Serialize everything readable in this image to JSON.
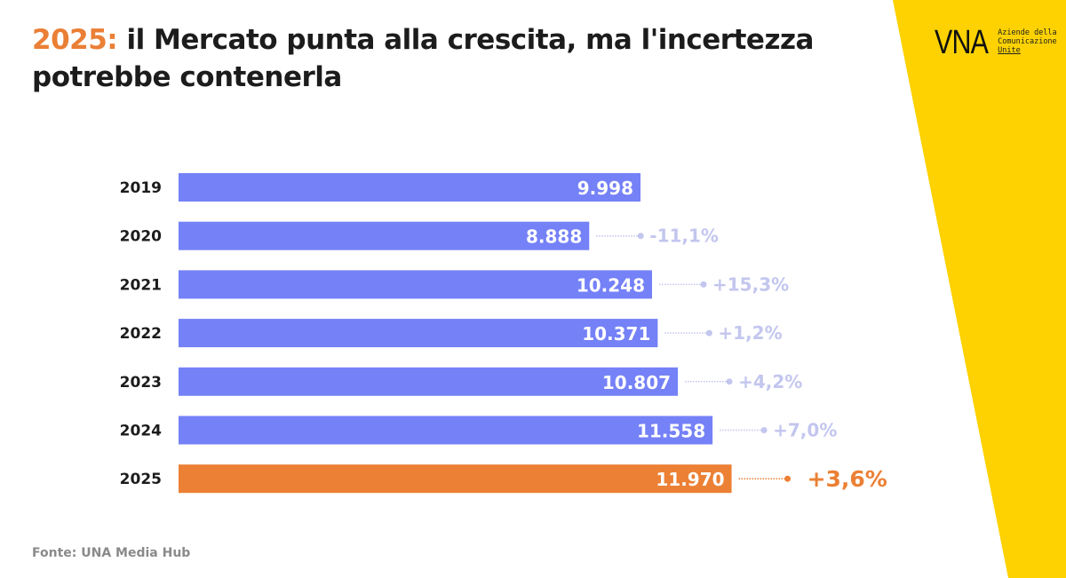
{
  "title": {
    "year": "2025:",
    "text": " il Mercato punta alla crescita, ma l'incertezza",
    "line2": "potrebbe contenerla"
  },
  "logo": {
    "mark": "VNA",
    "lines": [
      "Aziende della",
      "Comunicazione",
      "Unite"
    ]
  },
  "source": "Fonte: UNA Media Hub",
  "colors": {
    "bar": "#7581f7",
    "highlight": "#ec8034",
    "change": "#c3c6ee",
    "title_accent": "#ea7f36",
    "brand_yellow": "#fdd200"
  },
  "chart_data": {
    "type": "bar",
    "orientation": "horizontal",
    "categories": [
      "2019",
      "2020",
      "2021",
      "2022",
      "2023",
      "2024",
      "2025"
    ],
    "values": [
      9998,
      8888,
      10248,
      10371,
      10807,
      11558,
      11970
    ],
    "value_labels": [
      "9.998",
      "8.888",
      "10.248",
      "10.371",
      "10.807",
      "11.558",
      "11.970"
    ],
    "changes": [
      "",
      "-11,1%",
      "+15,3%",
      "+1,2%",
      "+4,2%",
      "+7,0%",
      "+3,6%"
    ],
    "highlight": "2025",
    "xlim": [
      0,
      11970
    ],
    "grid": false
  }
}
